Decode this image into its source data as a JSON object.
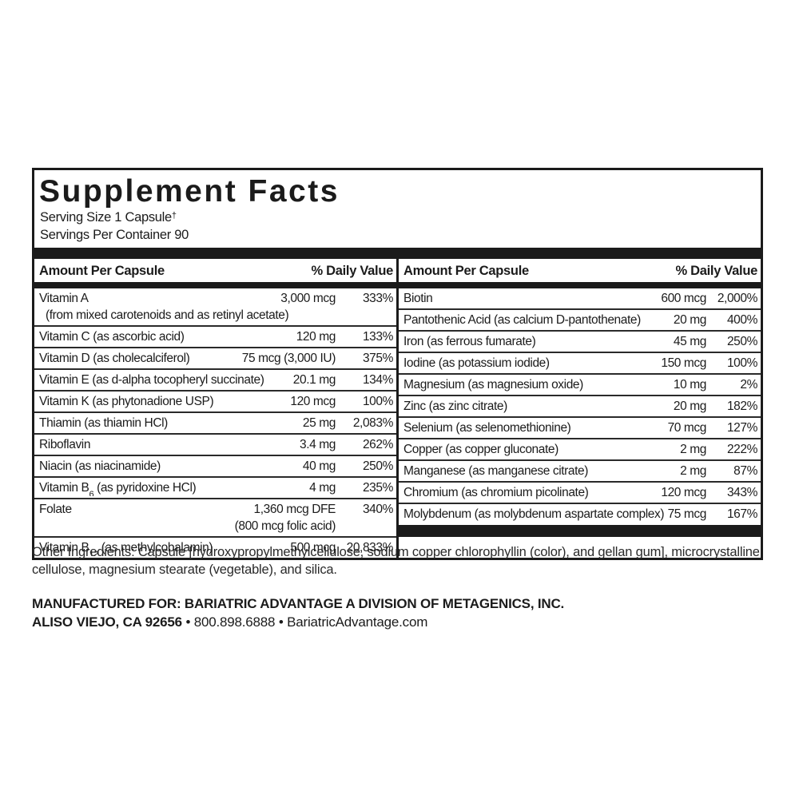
{
  "colors": {
    "ink": "#1b1b1b",
    "background": "#ffffff"
  },
  "panel": {
    "title": "Supplement Facts",
    "serving_size": "Serving Size 1 Capsule",
    "serving_size_mark": "†",
    "servings_per_container": "Servings Per Container 90",
    "col_header_amount": "Amount Per Capsule",
    "col_header_dv": "% Daily Value"
  },
  "left_rows": [
    {
      "name": "Vitamin A",
      "amount": "3,000 mcg",
      "dv": "333%",
      "sub": "(from mixed carotenoids and as retinyl acetate)"
    },
    {
      "name": "Vitamin C (as ascorbic acid)",
      "amount": "120 mg",
      "dv": "133%"
    },
    {
      "name": "Vitamin D (as cholecalciferol)",
      "amount": "75 mcg (3,000 IU)",
      "dv": "375%"
    },
    {
      "name": "Vitamin E (as d-alpha tocopheryl succinate)",
      "amount": "20.1 mg",
      "dv": "134%"
    },
    {
      "name": "Vitamin K (as phytonadione USP)",
      "amount": "120 mcg",
      "dv": "100%"
    },
    {
      "name": "Thiamin (as thiamin HCl)",
      "amount": "25 mg",
      "dv": "2,083%"
    },
    {
      "name": "Riboflavin",
      "amount": "3.4 mg",
      "dv": "262%"
    },
    {
      "name": "Niacin (as niacinamide)",
      "amount": "40 mg",
      "dv": "250%"
    },
    {
      "name": "Vitamin B~6~ (as pyridoxine HCl)",
      "amount": "4 mg",
      "dv": "235%"
    },
    {
      "name": "Folate",
      "amount": "1,360 mcg DFE",
      "amount2": "(800 mcg folic acid)",
      "dv": "340%"
    },
    {
      "name": "Vitamin B~12~ (as methylcobalamin)",
      "amount": "500 mcg",
      "dv": "20,833%"
    }
  ],
  "right_rows": [
    {
      "name": "Biotin",
      "amount": "600 mcg",
      "dv": "2,000%"
    },
    {
      "name": "Pantothenic Acid (as calcium D-pantothenate)",
      "amount": "20 mg",
      "dv": "400%"
    },
    {
      "name": "Iron (as ferrous fumarate)",
      "amount": "45 mg",
      "dv": "250%"
    },
    {
      "name": "Iodine (as potassium iodide)",
      "amount": "150 mcg",
      "dv": "100%"
    },
    {
      "name": "Magnesium (as magnesium oxide)",
      "amount": "10 mg",
      "dv": "2%"
    },
    {
      "name": "Zinc (as zinc citrate)",
      "amount": "20 mg",
      "dv": "182%"
    },
    {
      "name": "Selenium (as selenomethionine)",
      "amount": "70 mcg",
      "dv": "127%"
    },
    {
      "name": "Copper (as copper gluconate)",
      "amount": "2 mg",
      "dv": "222%"
    },
    {
      "name": "Manganese (as manganese citrate)",
      "amount": "2 mg",
      "dv": "87%"
    },
    {
      "name": "Chromium (as chromium picolinate)",
      "amount": "120 mcg",
      "dv": "343%"
    },
    {
      "name": "Molybdenum (as molybdenum aspartate complex)",
      "amount": "75 mcg",
      "dv": "167%"
    }
  ],
  "footer": {
    "other_ingredients": "Other Ingredients: Capsule [hydroxypropylmethylcellulose, sodium copper chlorophyllin (color), and gellan gum], microcrystalline cellulose, magnesium stearate (vegetable), and silica.",
    "manufactured_for": "MANUFACTURED FOR: BARIATRIC ADVANTAGE A DIVISION OF METAGENICS, INC.",
    "address_bold": "ALISO VIEJO, CA 92656",
    "address_rest": " • 800.898.6888 • BariatricAdvantage.com"
  }
}
